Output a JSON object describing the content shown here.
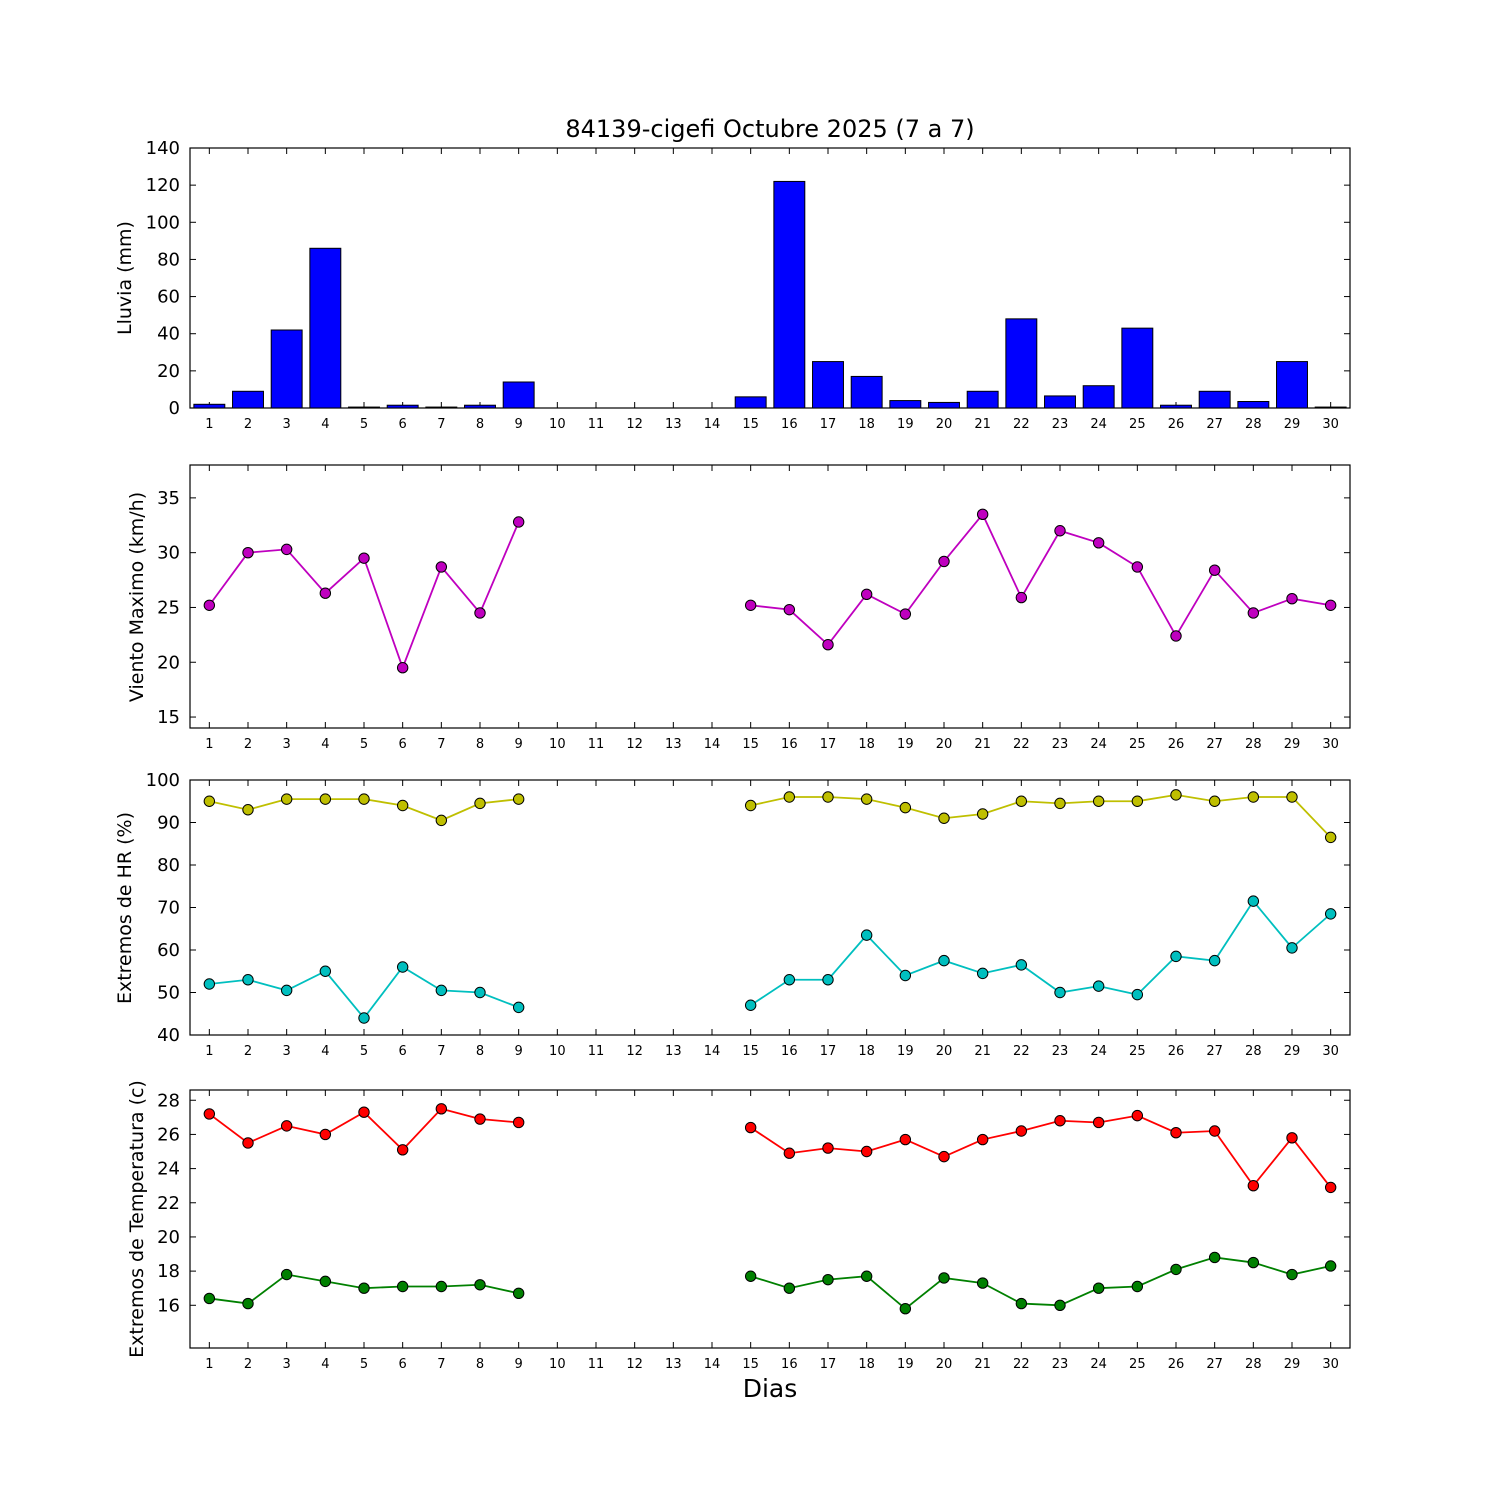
{
  "title": "84139-cigefi Octubre 2025  (7 a 7)",
  "xlabel": "Dias",
  "days": [
    1,
    2,
    3,
    4,
    5,
    6,
    7,
    8,
    9,
    10,
    11,
    12,
    13,
    14,
    15,
    16,
    17,
    18,
    19,
    20,
    21,
    22,
    23,
    24,
    25,
    26,
    27,
    28,
    29,
    30
  ],
  "chart_data": [
    {
      "type": "bar",
      "name": "lluvia",
      "ylabel": "Lluvia (mm)",
      "color": "#0000ff",
      "ylim": [
        0,
        140
      ],
      "yticks": [
        0,
        20,
        40,
        60,
        80,
        100,
        120,
        140
      ],
      "values": [
        2,
        9,
        42,
        86,
        0.5,
        1.5,
        0.5,
        1.5,
        14,
        null,
        null,
        null,
        null,
        null,
        6,
        122,
        25,
        17,
        4,
        3,
        9,
        48,
        6.5,
        12,
        43,
        1.5,
        9,
        3.5,
        25,
        0.5
      ]
    },
    {
      "type": "line",
      "name": "viento-maximo",
      "ylabel": "Viento Maximo (km/h)",
      "ylim": [
        14,
        38
      ],
      "yticks": [
        15,
        20,
        25,
        30,
        35
      ],
      "series": [
        {
          "name": "viento_maximo",
          "color": "#bf00bf",
          "values": [
            25.2,
            30.0,
            30.3,
            26.3,
            29.5,
            19.5,
            28.7,
            24.5,
            32.8,
            null,
            null,
            null,
            null,
            null,
            25.2,
            24.8,
            21.6,
            26.2,
            24.4,
            29.2,
            33.5,
            25.9,
            32.0,
            30.9,
            28.7,
            22.4,
            28.4,
            24.5,
            25.8,
            25.2
          ]
        }
      ]
    },
    {
      "type": "line",
      "name": "extremos-hr",
      "ylabel": "Extremos de HR (%)",
      "ylim": [
        40,
        100
      ],
      "yticks": [
        40,
        50,
        60,
        70,
        80,
        90,
        100
      ],
      "series": [
        {
          "name": "hr_maxima",
          "color": "#bfbf00",
          "values": [
            95,
            93,
            95.5,
            95.5,
            95.5,
            94,
            90.5,
            94.5,
            95.5,
            null,
            null,
            null,
            null,
            null,
            94,
            96,
            96,
            95.5,
            93.5,
            91,
            92,
            95,
            94.5,
            95,
            95,
            96.5,
            95,
            96,
            96,
            86.5
          ]
        },
        {
          "name": "hr_minima",
          "color": "#00bfbf",
          "values": [
            52,
            53,
            50.5,
            55,
            44,
            56,
            50.5,
            50,
            46.5,
            null,
            null,
            null,
            null,
            null,
            47,
            53,
            53,
            63.5,
            54,
            57.5,
            54.5,
            56.5,
            50,
            51.5,
            49.5,
            58.5,
            57.5,
            71.5,
            60.5,
            68.5
          ]
        }
      ]
    },
    {
      "type": "line",
      "name": "extremos-temperatura",
      "ylabel": "Extremos de Temperatura (c)",
      "ylim": [
        13.5,
        28.6
      ],
      "yticks": [
        16,
        18,
        20,
        22,
        24,
        26,
        28
      ],
      "series": [
        {
          "name": "temperatura_maxima",
          "color": "#ff0000",
          "values": [
            27.2,
            25.5,
            26.5,
            26.0,
            27.3,
            25.1,
            27.5,
            26.9,
            26.7,
            null,
            null,
            null,
            null,
            null,
            26.4,
            24.9,
            25.2,
            25.0,
            25.7,
            24.7,
            25.7,
            26.2,
            26.8,
            26.7,
            27.1,
            26.1,
            26.2,
            23.0,
            25.8,
            22.9
          ]
        },
        {
          "name": "temperatura_minima",
          "color": "#008000",
          "values": [
            16.4,
            16.1,
            17.8,
            17.4,
            17.0,
            17.1,
            17.1,
            17.2,
            16.7,
            null,
            null,
            null,
            null,
            null,
            17.7,
            17.0,
            17.5,
            17.7,
            15.8,
            17.6,
            17.3,
            16.1,
            16.0,
            17.0,
            17.1,
            18.1,
            18.8,
            18.5,
            17.8,
            18.3
          ]
        }
      ]
    }
  ]
}
